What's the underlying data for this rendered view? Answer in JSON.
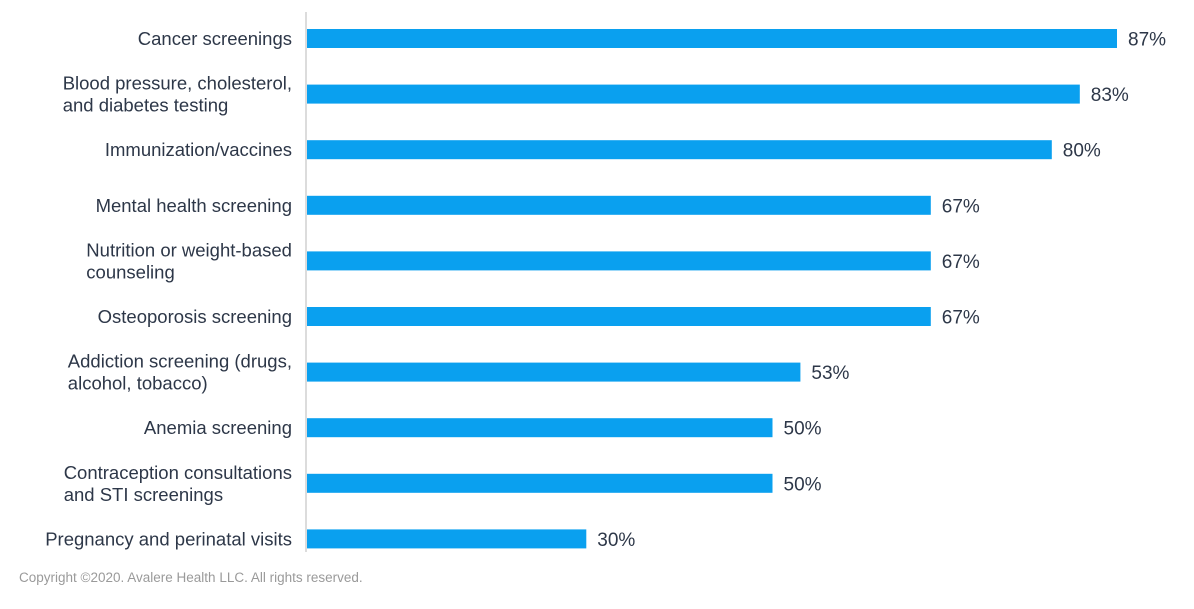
{
  "chart_data": {
    "type": "bar",
    "orientation": "horizontal",
    "categories": [
      [
        "Cancer screenings"
      ],
      [
        "Blood pressure, cholesterol,",
        "and diabetes testing"
      ],
      [
        "Immunization/vaccines"
      ],
      [
        "Mental health screening"
      ],
      [
        "Nutrition or weight-based",
        "counseling"
      ],
      [
        "Osteoporosis screening"
      ],
      [
        "Addiction screening (drugs,",
        "alcohol, tobacco)"
      ],
      [
        "Anemia screening"
      ],
      [
        "Contraception consultations",
        "and STI screenings"
      ],
      [
        "Pregnancy and perinatal visits"
      ]
    ],
    "values": [
      87,
      83,
      80,
      67,
      67,
      67,
      53,
      50,
      50,
      30
    ],
    "value_labels": [
      "87%",
      "83%",
      "80%",
      "67%",
      "67%",
      "67%",
      "53%",
      "50%",
      "50%",
      "30%"
    ],
    "xlim": [
      0,
      100
    ],
    "grid": false,
    "title": "",
    "xlabel": "",
    "ylabel": ""
  },
  "colors": {
    "bar": "#0aa0ef",
    "label_text": "#2d3748",
    "axis": "#d0d0d0",
    "copyright_text": "#9a9a9a"
  },
  "footer": {
    "copyright": "Copyright ©2020. Avalere Health LLC. All rights reserved."
  }
}
